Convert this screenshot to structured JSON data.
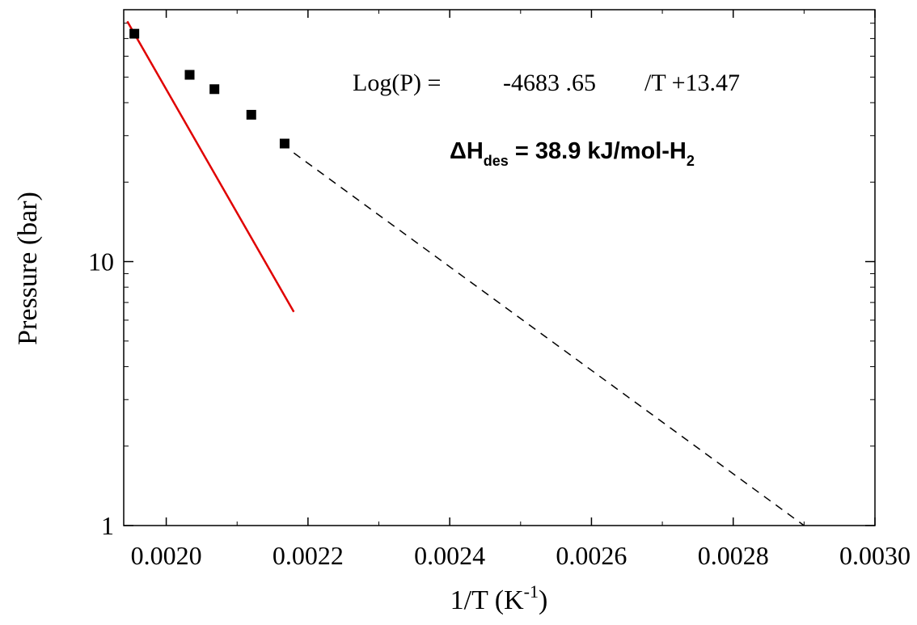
{
  "chart_data": {
    "type": "scatter",
    "xlabel": "1/T (K",
    "xlabel_sup": "-1",
    "xlabel_close": ")",
    "ylabel": "Pressure (bar)",
    "y_scale": "log",
    "xlim": [
      0.00194,
      0.003
    ],
    "ylim": [
      1,
      90
    ],
    "x_ticks": [
      {
        "value": 0.002,
        "label": "0.0020"
      },
      {
        "value": 0.0022,
        "label": "0.0022"
      },
      {
        "value": 0.0024,
        "label": "0.0024"
      },
      {
        "value": 0.0026,
        "label": "0.0026"
      },
      {
        "value": 0.0028,
        "label": "0.0028"
      },
      {
        "value": 0.003,
        "label": "0.0030"
      }
    ],
    "y_ticks": [
      {
        "value": 1,
        "label": "1"
      },
      {
        "value": 10,
        "label": "10"
      }
    ],
    "series": [
      {
        "marker": "square",
        "color": "#000000",
        "points": [
          {
            "x": 0.001955,
            "y": 73
          },
          {
            "x": 0.002033,
            "y": 51
          },
          {
            "x": 0.002068,
            "y": 45
          },
          {
            "x": 0.00212,
            "y": 36
          },
          {
            "x": 0.002167,
            "y": 28
          }
        ]
      }
    ],
    "fit_line": {
      "color": "#e00000",
      "style": "solid",
      "slope": -4683.65,
      "intercept": 13.47,
      "x_range": [
        0.001945,
        0.00218
      ]
    },
    "extrapolation_line": {
      "color": "#000000",
      "style": "dashed",
      "x_range": [
        0.00218,
        0.0029
      ],
      "y_range": [
        25.8,
        1
      ]
    },
    "annotations": {
      "equation": {
        "prefix": "Log(P) =",
        "coef": "-4683  .65",
        "suffix": "/T +13.47"
      },
      "enthalpy": {
        "delta_h": "ΔH",
        "sub": "des",
        "value": " = 38.9 kJ/mol-H",
        "sub2": "2"
      }
    }
  }
}
